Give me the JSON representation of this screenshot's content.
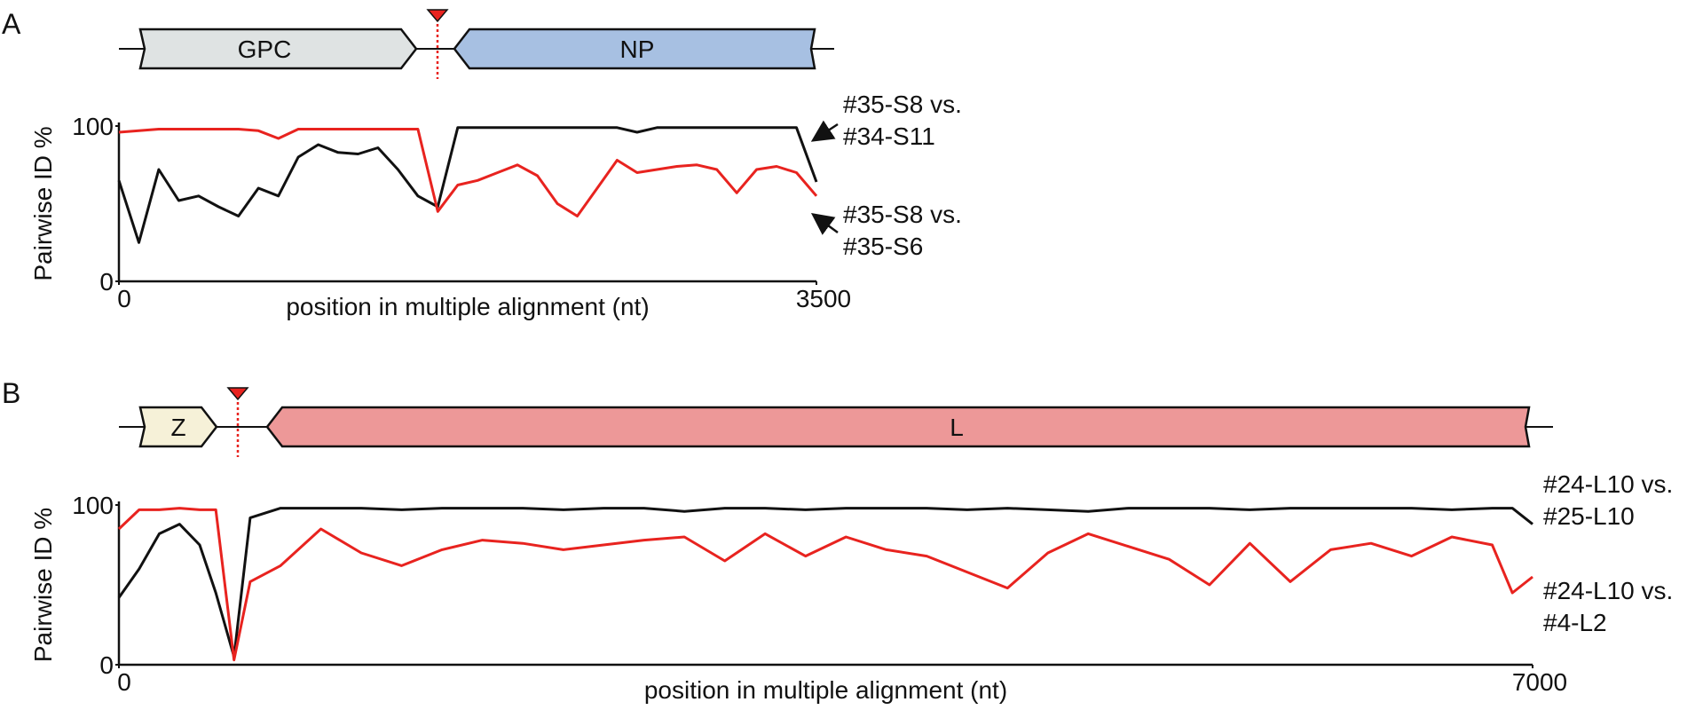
{
  "chart_data": [
    {
      "type": "line",
      "panel_label": "A",
      "gene_labels": [
        "GPC",
        "NP"
      ],
      "xlabel": "position in multiple alignment (nt)",
      "ylabel": "Pairwise ID %",
      "xlim": [
        0,
        3500
      ],
      "ylim": [
        0,
        100
      ],
      "xticks": [
        0,
        3500
      ],
      "yticks": [
        0,
        100
      ],
      "x": [
        0,
        100,
        200,
        300,
        400,
        500,
        600,
        700,
        800,
        900,
        1000,
        1100,
        1200,
        1300,
        1400,
        1500,
        1600,
        1700,
        1800,
        1900,
        2000,
        2100,
        2200,
        2300,
        2400,
        2500,
        2600,
        2700,
        2800,
        2900,
        3000,
        3100,
        3200,
        3300,
        3400,
        3500
      ],
      "series": [
        {
          "name": "#35-S8 vs.\n#34-S11",
          "color": "#111111",
          "values": [
            65,
            25,
            72,
            52,
            55,
            48,
            42,
            60,
            55,
            80,
            88,
            83,
            82,
            86,
            72,
            55,
            48,
            99,
            99,
            99,
            99,
            99,
            99,
            99,
            99,
            99,
            96,
            99,
            99,
            99,
            99,
            99,
            99,
            99,
            99,
            64
          ]
        },
        {
          "name": "#35-S8 vs.\n#35-S6",
          "color": "#e8231f",
          "values": [
            96,
            97,
            98,
            98,
            98,
            98,
            98,
            97,
            92,
            98,
            98,
            98,
            98,
            98,
            98,
            98,
            45,
            62,
            65,
            70,
            75,
            68,
            50,
            42,
            60,
            78,
            70,
            72,
            74,
            75,
            72,
            57,
            72,
            74,
            70,
            55
          ]
        }
      ]
    },
    {
      "type": "line",
      "panel_label": "B",
      "gene_labels": [
        "Z",
        "L"
      ],
      "xlabel": "position in multiple alignment (nt)",
      "ylabel": "Pairwise ID %",
      "xlim": [
        0,
        7000
      ],
      "ylim": [
        0,
        100
      ],
      "xticks": [
        0,
        7000
      ],
      "yticks": [
        0,
        100
      ],
      "x": [
        0,
        100,
        200,
        300,
        400,
        480,
        570,
        650,
        800,
        1000,
        1200,
        1400,
        1600,
        1800,
        2000,
        2200,
        2400,
        2600,
        2800,
        3000,
        3200,
        3400,
        3600,
        3800,
        4000,
        4200,
        4400,
        4600,
        4800,
        5000,
        5200,
        5400,
        5600,
        5800,
        6000,
        6200,
        6400,
        6600,
        6800,
        6900,
        7000
      ],
      "series": [
        {
          "name": "#24-L10 vs.\n#25-L10",
          "color": "#111111",
          "values": [
            42,
            60,
            82,
            88,
            75,
            45,
            5,
            92,
            98,
            98,
            98,
            97,
            98,
            98,
            98,
            97,
            98,
            98,
            96,
            98,
            98,
            97,
            98,
            98,
            98,
            97,
            98,
            97,
            96,
            98,
            98,
            98,
            97,
            98,
            98,
            98,
            98,
            97,
            98,
            98,
            88
          ]
        },
        {
          "name": "#24-L10 vs.\n#4-L2",
          "color": "#e8231f",
          "values": [
            85,
            97,
            97,
            98,
            97,
            97,
            3,
            52,
            62,
            85,
            70,
            62,
            72,
            78,
            76,
            72,
            75,
            78,
            80,
            65,
            82,
            68,
            80,
            72,
            68,
            58,
            48,
            70,
            82,
            74,
            66,
            50,
            76,
            52,
            72,
            76,
            68,
            80,
            75,
            45,
            55
          ]
        }
      ]
    }
  ]
}
